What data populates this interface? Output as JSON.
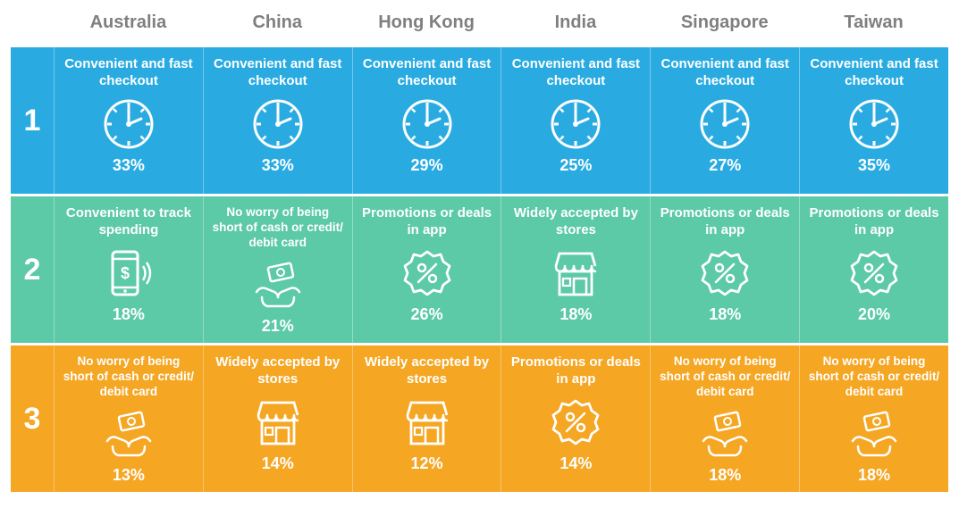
{
  "infographic": {
    "type": "infographic",
    "countries": [
      "Australia",
      "China",
      "Hong Kong",
      "India",
      "Singapore",
      "Taiwan"
    ],
    "header_color": "#7f7f7f",
    "header_fontsize": 20,
    "row_colors": {
      "1": "#29abe2",
      "2": "#5cc9a7",
      "3": "#f5a623"
    },
    "label_fontsize": 15,
    "value_fontsize": 18,
    "icon_color": "#ffffff",
    "background_color": "#ffffff",
    "rows": [
      {
        "rank": "1",
        "cells": [
          {
            "label": "Convenient and fast checkout",
            "icon": "clock",
            "value": "33%"
          },
          {
            "label": "Convenient and fast checkout",
            "icon": "clock",
            "value": "33%"
          },
          {
            "label": "Convenient and fast checkout",
            "icon": "clock",
            "value": "29%"
          },
          {
            "label": "Convenient and fast checkout",
            "icon": "clock",
            "value": "25%"
          },
          {
            "label": "Convenient and fast checkout",
            "icon": "clock",
            "value": "27%"
          },
          {
            "label": "Convenient and fast checkout",
            "icon": "clock",
            "value": "35%"
          }
        ]
      },
      {
        "rank": "2",
        "cells": [
          {
            "label": "Convenient to track spending",
            "icon": "phone-pay",
            "value": "18%"
          },
          {
            "label": "No worry of being short of cash or credit/ debit card",
            "icon": "cash-hands",
            "value": "21%"
          },
          {
            "label": "Promotions or deals in app",
            "icon": "deal-badge",
            "value": "26%"
          },
          {
            "label": "Widely accepted by stores",
            "icon": "store",
            "value": "18%"
          },
          {
            "label": "Promotions or deals in app",
            "icon": "deal-badge",
            "value": "18%"
          },
          {
            "label": "Promotions or deals in app",
            "icon": "deal-badge",
            "value": "20%"
          }
        ]
      },
      {
        "rank": "3",
        "cells": [
          {
            "label": "No worry of being short of cash or credit/ debit card",
            "icon": "cash-hands",
            "value": "13%"
          },
          {
            "label": "Widely accepted by stores",
            "icon": "store",
            "value": "14%"
          },
          {
            "label": "Widely accepted by stores",
            "icon": "store",
            "value": "12%"
          },
          {
            "label": "Promotions or deals in app",
            "icon": "deal-badge",
            "value": "14%"
          },
          {
            "label": "No worry of being short of cash or credit/ debit card",
            "icon": "cash-hands",
            "value": "18%"
          },
          {
            "label": "No worry of being short of cash or credit/ debit card",
            "icon": "cash-hands",
            "value": "18%"
          }
        ]
      }
    ]
  }
}
